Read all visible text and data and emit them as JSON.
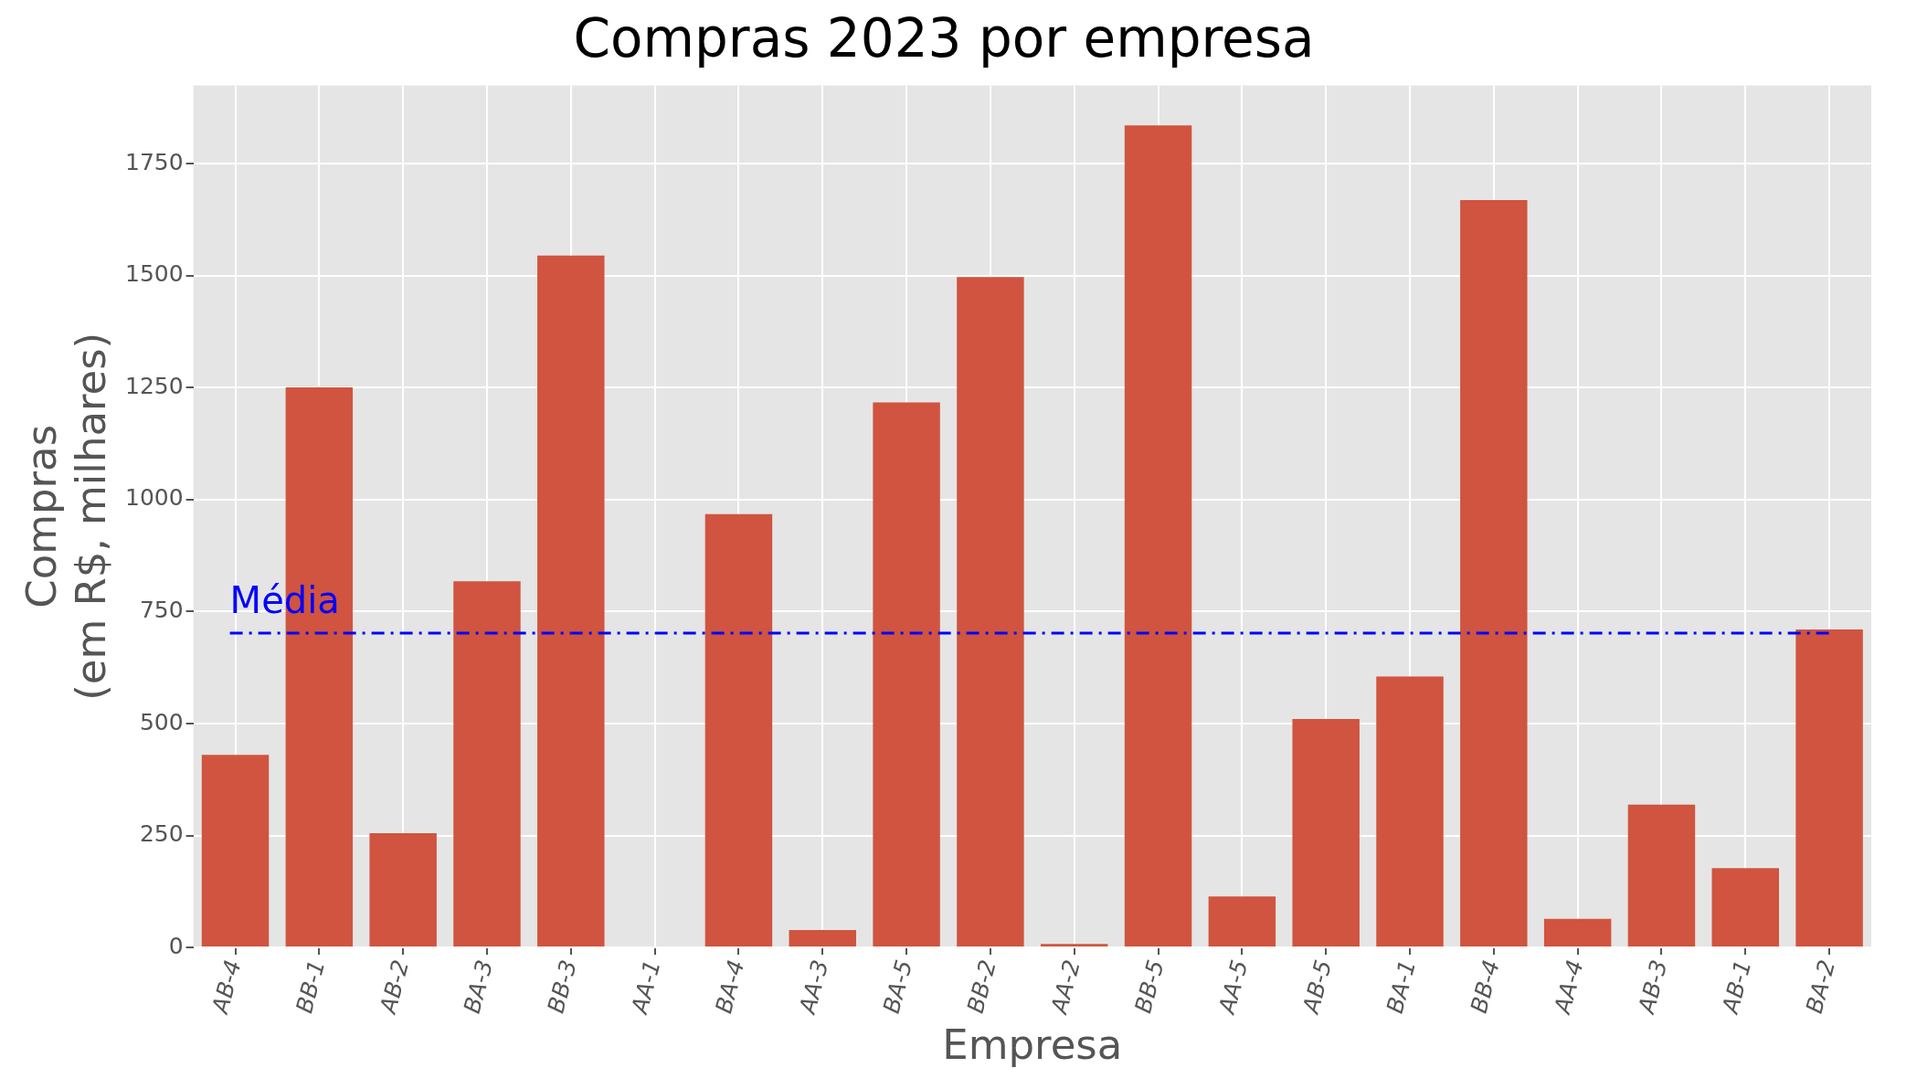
{
  "chart_data": {
    "type": "bar",
    "title": "Compras 2023 por empresa",
    "xlabel": "Empresa",
    "ylabel": "Compras\n(em R$, milhares)",
    "categories": [
      "AB-4",
      "BB-1",
      "AB-2",
      "BA-3",
      "BB-3",
      "AA-1",
      "BA-4",
      "AA-3",
      "BA-5",
      "BB-2",
      "AA-2",
      "BB-5",
      "AA-5",
      "AB-5",
      "BA-1",
      "BB-4",
      "AA-4",
      "AB-3",
      "AB-1",
      "BA-2"
    ],
    "values": [
      430,
      1251,
      255,
      818,
      1545,
      0,
      968,
      39,
      1217,
      1497,
      8,
      1836,
      114,
      510,
      605,
      1669,
      64,
      319,
      177,
      710
    ],
    "color": "#d0543f",
    "ylim": [
      0,
      1925
    ],
    "yticks": [
      0,
      250,
      500,
      750,
      1000,
      1250,
      1500,
      1750
    ],
    "grid": true,
    "ref_lines": [
      {
        "axis": "y",
        "value": 702,
        "label": "Média",
        "color": "#0000ff",
        "line_style": "dashed"
      }
    ]
  }
}
